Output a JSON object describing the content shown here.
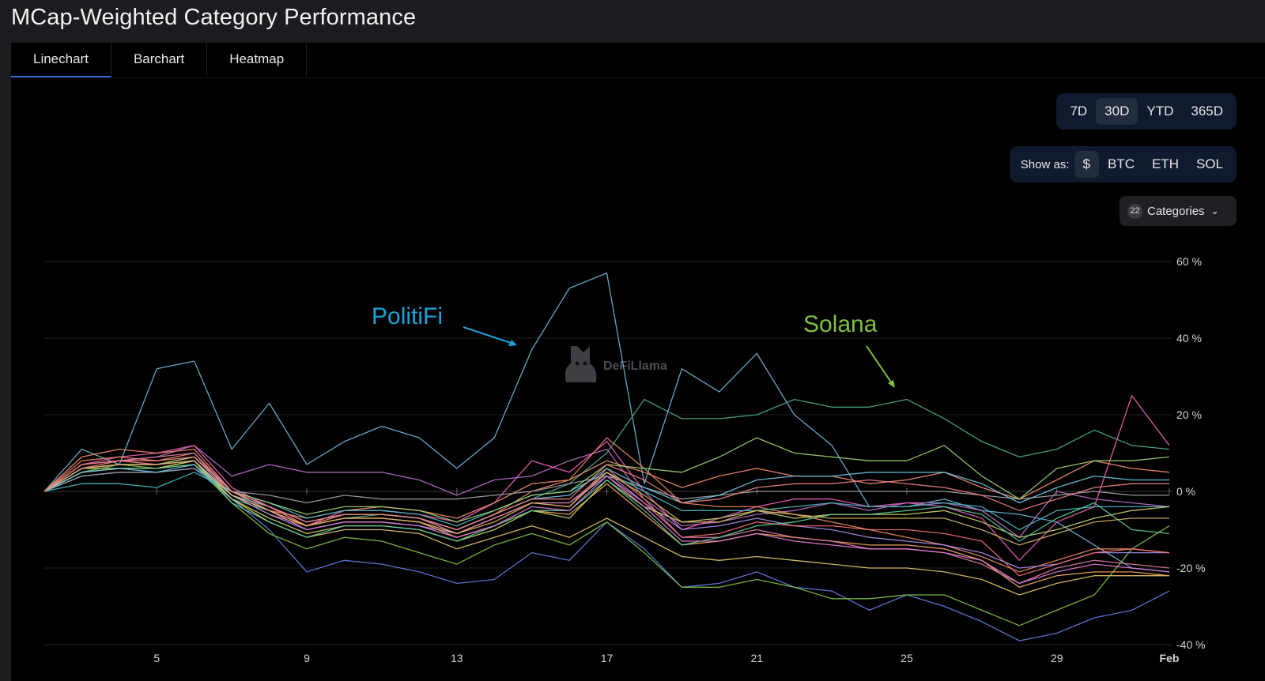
{
  "title": "MCap-Weighted Category Performance",
  "tabs": [
    {
      "label": "Linechart",
      "active": true
    },
    {
      "label": "Barchart",
      "active": false
    },
    {
      "label": "Heatmap",
      "active": false
    }
  ],
  "periods": [
    {
      "label": "7D",
      "selected": false
    },
    {
      "label": "30D",
      "selected": true
    },
    {
      "label": "YTD",
      "selected": false
    },
    {
      "label": "365D",
      "selected": false
    }
  ],
  "show_as": {
    "label": "Show as:",
    "options": [
      {
        "label": "$",
        "selected": true
      },
      {
        "label": "BTC",
        "selected": false
      },
      {
        "label": "ETH",
        "selected": false
      },
      {
        "label": "SOL",
        "selected": false
      }
    ]
  },
  "categories_button": {
    "count": "22",
    "label": "Categories",
    "icon": "chevron-down-icon"
  },
  "watermark": "DeFiLlama",
  "annotations": [
    {
      "label": "PolitiFi",
      "color": "#1aa3d9"
    },
    {
      "label": "Solana",
      "color": "#7fc241"
    }
  ],
  "chart_data": {
    "type": "line",
    "x": [
      2,
      3,
      4,
      5,
      6,
      7,
      8,
      9,
      10,
      11,
      12,
      13,
      14,
      15,
      16,
      17,
      18,
      19,
      20,
      21,
      22,
      23,
      24,
      25,
      26,
      27,
      28,
      29,
      30,
      31,
      32
    ],
    "x_tick_labels": [
      {
        "x": 5,
        "label": "5"
      },
      {
        "x": 9,
        "label": "9"
      },
      {
        "x": 13,
        "label": "13"
      },
      {
        "x": 17,
        "label": "17"
      },
      {
        "x": 21,
        "label": "21"
      },
      {
        "x": 25,
        "label": "25"
      },
      {
        "x": 29,
        "label": "29"
      },
      {
        "x": 32,
        "label": "Feb"
      }
    ],
    "ylim": [
      -40,
      60
    ],
    "y_ticks": [
      60,
      40,
      20,
      0,
      -20,
      -40
    ],
    "y_tick_suffix": " %",
    "grid": "horizontal",
    "series": [
      {
        "color": "#6fb4d8",
        "values": [
          0,
          11,
          7,
          32,
          34,
          11,
          23,
          7,
          13,
          17,
          14,
          6,
          14,
          37,
          53,
          57,
          2,
          32,
          26,
          36,
          20,
          12,
          -4,
          -4,
          -2,
          -5,
          -6,
          -8,
          -14,
          -20,
          -21
        ]
      },
      {
        "color": "#4fa88a",
        "values": [
          0,
          6,
          8,
          7,
          8,
          -2,
          -5,
          -9,
          -7,
          -6,
          -7,
          -10,
          -6,
          -2,
          2,
          10,
          24,
          19,
          19,
          20,
          24,
          22,
          22,
          24,
          19,
          13,
          9,
          11,
          16,
          12,
          11
        ]
      },
      {
        "color": "#b66fc4",
        "values": [
          0,
          7,
          8,
          9,
          12,
          4,
          7,
          5,
          5,
          5,
          3,
          -1,
          3,
          4,
          8,
          11,
          -2,
          -9,
          -8,
          -6,
          -5,
          -3,
          -5,
          -3,
          -3,
          -5,
          -12,
          0,
          -2,
          -3,
          -4
        ]
      },
      {
        "color": "#e95fb8",
        "values": [
          0,
          7,
          9,
          10,
          12,
          1,
          -4,
          -9,
          -5,
          -5,
          -6,
          -8,
          -3,
          8,
          5,
          13,
          0,
          -10,
          -7,
          -4,
          -2,
          -2,
          -4,
          -3,
          -4,
          -7,
          -18,
          -8,
          -4,
          25,
          12
        ]
      },
      {
        "color": "#e3c266",
        "values": [
          0,
          5,
          6,
          6,
          7,
          -2,
          -8,
          -12,
          -10,
          -10,
          -11,
          -15,
          -12,
          -9,
          -12,
          -7,
          -12,
          -17,
          -18,
          -17,
          -18,
          -19,
          -20,
          -20,
          -21,
          -23,
          -27,
          -24,
          -22,
          -22,
          -22
        ]
      },
      {
        "color": "#5f7de0",
        "values": [
          0,
          4,
          5,
          5,
          6,
          -2,
          -10,
          -21,
          -18,
          -19,
          -21,
          -24,
          -23,
          -16,
          -18,
          -8,
          -15,
          -25,
          -24,
          -21,
          -25,
          -26,
          -31,
          -27,
          -30,
          -34,
          -39,
          -37,
          -33,
          -31,
          -26
        ]
      },
      {
        "color": "#7fc241",
        "values": [
          0,
          5,
          7,
          6,
          8,
          -3,
          -11,
          -15,
          -12,
          -13,
          -16,
          -19,
          -14,
          -11,
          -14,
          -8,
          -16,
          -25,
          -25,
          -23,
          -25,
          -28,
          -28,
          -27,
          -27,
          -31,
          -35,
          -31,
          -27,
          -15,
          -9
        ]
      },
      {
        "color": "#e8885a",
        "values": [
          0,
          8,
          9,
          8,
          10,
          -1,
          -6,
          -9,
          -6,
          -6,
          -7,
          -10,
          -6,
          0,
          3,
          14,
          6,
          -3,
          -4,
          -4,
          -6,
          -8,
          -10,
          -12,
          -14,
          -17,
          -21,
          -18,
          -15,
          -15,
          -16
        ]
      },
      {
        "color": "#f28c6b",
        "values": [
          0,
          9,
          11,
          10,
          11,
          0,
          -5,
          -7,
          -5,
          -4,
          -5,
          -7,
          -3,
          2,
          3,
          8,
          5,
          1,
          4,
          6,
          4,
          4,
          2,
          3,
          5,
          1,
          -2,
          3,
          8,
          6,
          5
        ]
      },
      {
        "color": "#a0a0a6",
        "values": [
          0,
          4,
          5,
          5,
          6,
          0,
          -1,
          -3,
          -1,
          -2,
          -2,
          -2,
          -1,
          0,
          2,
          4,
          1,
          -2,
          -1,
          0,
          0,
          0,
          0,
          0,
          0,
          -1,
          -2,
          -1,
          0,
          -1,
          -1
        ]
      },
      {
        "color": "#49b7c4",
        "values": [
          0,
          2,
          2,
          1,
          5,
          0,
          -3,
          -7,
          -5,
          -5,
          -6,
          -9,
          -5,
          -1,
          0,
          5,
          0,
          -5,
          -5,
          -5,
          -4,
          -3,
          -4,
          -4,
          -3,
          -4,
          -10,
          -5,
          -4,
          -4,
          -4
        ]
      },
      {
        "color": "#a58ee8",
        "values": [
          0,
          6,
          7,
          7,
          9,
          -1,
          -6,
          -10,
          -8,
          -8,
          -9,
          -11,
          -7,
          -3,
          -3,
          4,
          -3,
          -10,
          -9,
          -7,
          -9,
          -10,
          -12,
          -13,
          -14,
          -16,
          -20,
          -19,
          -16,
          -16,
          -16
        ]
      },
      {
        "color": "#ef6f6f",
        "values": [
          0,
          6,
          8,
          7,
          9,
          0,
          -4,
          -9,
          -7,
          -7,
          -8,
          -11,
          -7,
          -3,
          -4,
          6,
          -2,
          -12,
          -11,
          -8,
          -9,
          -9,
          -10,
          -10,
          -11,
          -13,
          -22,
          -19,
          -16,
          -15,
          -16
        ]
      },
      {
        "color": "#f2a65a",
        "values": [
          0,
          5,
          6,
          6,
          8,
          -1,
          -5,
          -9,
          -7,
          -7,
          -8,
          -12,
          -9,
          -5,
          -6,
          2,
          -6,
          -14,
          -13,
          -11,
          -12,
          -13,
          -14,
          -14,
          -15,
          -18,
          -25,
          -22,
          -21,
          -21,
          -22
        ]
      },
      {
        "color": "#c7d36a",
        "values": [
          0,
          6,
          6,
          6,
          8,
          -2,
          -7,
          -11,
          -9,
          -9,
          -10,
          -13,
          -10,
          -5,
          -7,
          3,
          -4,
          -8,
          -7,
          -5,
          -7,
          -6,
          -6,
          -6,
          -5,
          -8,
          -12,
          -10,
          -7,
          -5,
          -4
        ]
      },
      {
        "color": "#9ad36f",
        "values": [
          0,
          6,
          7,
          7,
          9,
          0,
          -3,
          -6,
          -4,
          -4,
          -5,
          -8,
          -5,
          -1,
          0,
          7,
          6,
          5,
          9,
          14,
          10,
          9,
          8,
          8,
          12,
          4,
          -2,
          6,
          8,
          8,
          9
        ]
      },
      {
        "color": "#d97aa6",
        "values": [
          0,
          7,
          8,
          9,
          10,
          0,
          -4,
          -8,
          -6,
          -6,
          -7,
          -11,
          -7,
          -3,
          -3,
          5,
          -3,
          -12,
          -12,
          -10,
          -12,
          -13,
          -15,
          -15,
          -16,
          -19,
          -24,
          -20,
          -18,
          -19,
          -20
        ]
      },
      {
        "color": "#59c99a",
        "values": [
          0,
          5,
          6,
          6,
          7,
          -3,
          -8,
          -12,
          -9,
          -9,
          -10,
          -13,
          -9,
          -5,
          -5,
          3,
          -5,
          -14,
          -12,
          -9,
          -8,
          -6,
          -6,
          -5,
          -4,
          -6,
          -13,
          -7,
          -3,
          -10,
          -11
        ]
      },
      {
        "color": "#e07bd6",
        "values": [
          0,
          6,
          7,
          7,
          8,
          -1,
          -5,
          -10,
          -8,
          -8,
          -9,
          -12,
          -9,
          -4,
          -5,
          4,
          -4,
          -13,
          -13,
          -11,
          -13,
          -14,
          -15,
          -15,
          -16,
          -18,
          -24,
          -21,
          -19,
          -20,
          -21
        ]
      },
      {
        "color": "#6cc3e0",
        "values": [
          0,
          5,
          6,
          5,
          7,
          -1,
          -4,
          -8,
          -6,
          -6,
          -7,
          -10,
          -6,
          -2,
          -1,
          6,
          1,
          -3,
          -1,
          3,
          4,
          4,
          5,
          5,
          5,
          2,
          -3,
          1,
          4,
          3,
          3
        ]
      },
      {
        "color": "#d6b25e",
        "values": [
          0,
          6,
          7,
          7,
          8,
          -1,
          -5,
          -9,
          -7,
          -7,
          -8,
          -11,
          -8,
          -3,
          -4,
          5,
          -1,
          -8,
          -8,
          -5,
          -6,
          -7,
          -7,
          -7,
          -7,
          -10,
          -14,
          -11,
          -8,
          -7,
          -7
        ]
      },
      {
        "color": "#f07f7f",
        "values": [
          0,
          7,
          8,
          8,
          9,
          0,
          -4,
          -8,
          -6,
          -6,
          -7,
          -10,
          -6,
          -2,
          -2,
          7,
          3,
          -3,
          -2,
          1,
          2,
          2,
          3,
          2,
          1,
          -1,
          -5,
          -2,
          1,
          2,
          2
        ]
      }
    ]
  }
}
